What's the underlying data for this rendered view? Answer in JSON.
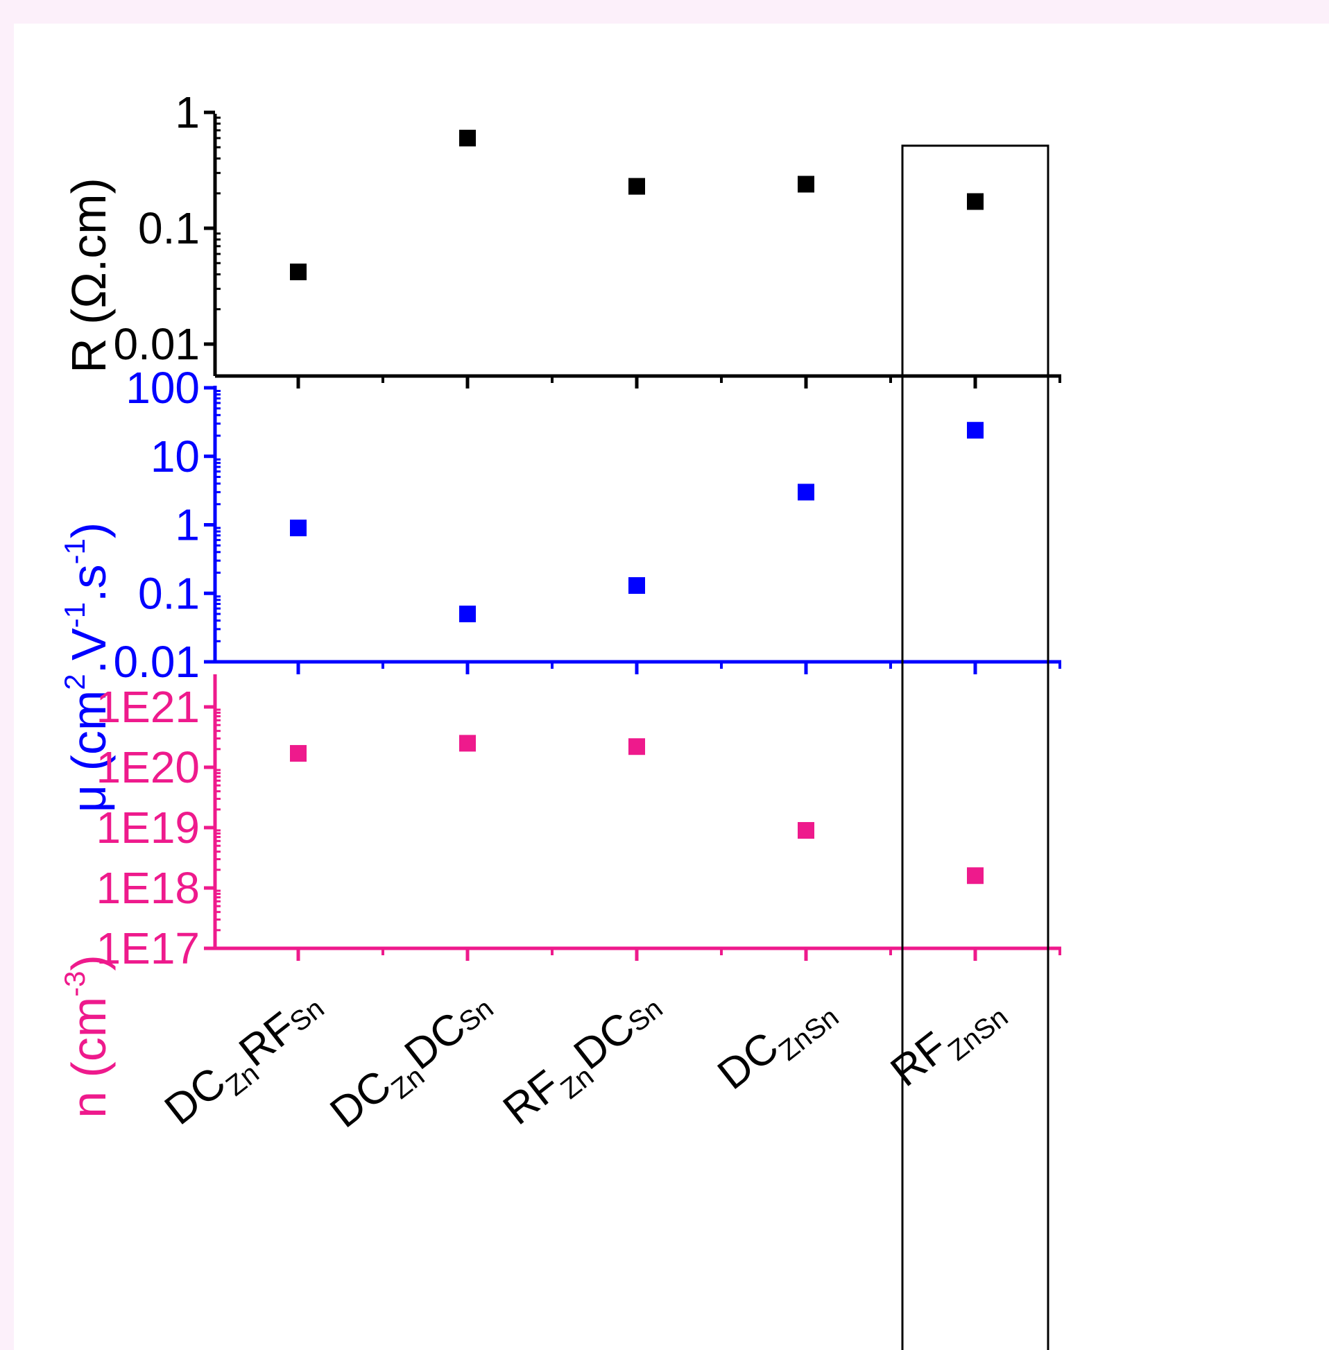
{
  "chart_data": {
    "type": "scatter",
    "categories": [
      {
        "main": "DC",
        "sub1": "Zn",
        "main2": "RF",
        "sub2": "Sn"
      },
      {
        "main": "DC",
        "sub1": "Zn",
        "main2": "DC",
        "sub2": "Sn"
      },
      {
        "main": "RF",
        "sub1": "Zn",
        "main2": "DC",
        "sub2": "Sn"
      },
      {
        "main": "DC",
        "sub1": "ZnSn",
        "main2": "",
        "sub2": ""
      },
      {
        "main": "RF",
        "sub1": "ZnSn",
        "main2": "",
        "sub2": ""
      }
    ],
    "highlighted_category_index": 4,
    "panels": [
      {
        "id": "resistivity",
        "ylabel": "R (Ω.cm)",
        "ylabel_parts": {
          "base": "R (Ω.cm)"
        },
        "scale": "log",
        "ylim": [
          0.01,
          1
        ],
        "tick_labels": [
          "0.01",
          "0.1",
          "1"
        ],
        "color": "#000000",
        "values": [
          0.042,
          0.6,
          0.23,
          0.24,
          0.17
        ]
      },
      {
        "id": "mobility",
        "ylabel": "μ (cm2.V-1.s-1)",
        "ylabel_parts": {
          "base": "μ (cm",
          "sup1": "2",
          "mid1": ".V",
          "sup2": "-1",
          "mid2": ".s",
          "sup3": "-1",
          "end": ")"
        },
        "scale": "log",
        "ylim": [
          0.01,
          100
        ],
        "tick_labels": [
          "0.01",
          "0.1",
          "1",
          "10",
          "100"
        ],
        "color": "#0000ff",
        "values": [
          0.9,
          0.05,
          0.13,
          3.0,
          24
        ]
      },
      {
        "id": "carrier_density",
        "ylabel": "n (cm-3)",
        "ylabel_parts": {
          "base": "n (cm",
          "sup1": "-3",
          "end": ")"
        },
        "scale": "log",
        "ylim": [
          1e+17,
          1e+21
        ],
        "tick_labels": [
          "1E17",
          "1E18",
          "1E19",
          "1E20",
          "1E21"
        ],
        "color": "#ee1a8c",
        "values": [
          1.7e+20,
          2.5e+20,
          2.2e+20,
          9e+18,
          1.6e+18
        ]
      }
    ]
  }
}
